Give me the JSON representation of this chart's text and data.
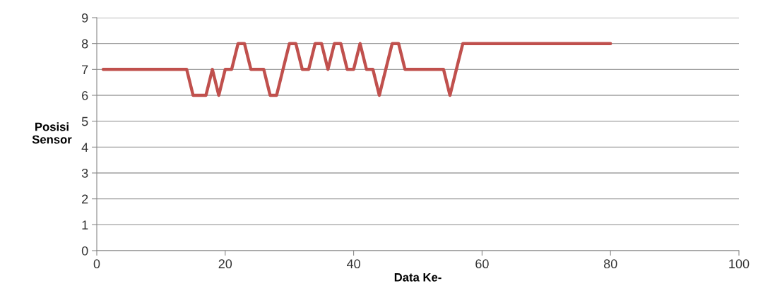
{
  "chart_data": {
    "type": "line",
    "xlabel": "Data Ke-",
    "ylabel": "Posisi\nSensor",
    "x": [
      1,
      2,
      3,
      4,
      5,
      6,
      7,
      8,
      9,
      10,
      11,
      12,
      13,
      14,
      15,
      16,
      17,
      18,
      19,
      20,
      21,
      22,
      23,
      24,
      25,
      26,
      27,
      28,
      29,
      30,
      31,
      32,
      33,
      34,
      35,
      36,
      37,
      38,
      39,
      40,
      41,
      42,
      43,
      44,
      45,
      46,
      47,
      48,
      49,
      50,
      51,
      52,
      53,
      54,
      55,
      56,
      57,
      58,
      59,
      60,
      61,
      62,
      63,
      64,
      65,
      66,
      67,
      68,
      69,
      70,
      71,
      72,
      73,
      74,
      75,
      76,
      77,
      78,
      79,
      80
    ],
    "series": [
      {
        "color": "#c0504d",
        "values": [
          7,
          7,
          7,
          7,
          7,
          7,
          7,
          7,
          7,
          7,
          7,
          7,
          7,
          7,
          6,
          6,
          6,
          7,
          6,
          7,
          7,
          8,
          8,
          7,
          7,
          7,
          6,
          6,
          7,
          8,
          8,
          7,
          7,
          8,
          8,
          7,
          8,
          8,
          7,
          7,
          8,
          7,
          7,
          6,
          7,
          8,
          8,
          7,
          7,
          7,
          7,
          7,
          7,
          7,
          6,
          7,
          8,
          8,
          8,
          8,
          8,
          8,
          8,
          8,
          8,
          8,
          8,
          8,
          8,
          8,
          8,
          8,
          8,
          8,
          8,
          8,
          8,
          8,
          8,
          8
        ]
      }
    ],
    "xlim": [
      0,
      100
    ],
    "xticks": [
      0,
      20,
      40,
      60,
      80,
      100
    ],
    "ylim": [
      0,
      9
    ],
    "yticks": [
      0,
      1,
      2,
      3,
      4,
      5,
      6,
      7,
      8,
      9
    ],
    "grid": "y",
    "marker": "none",
    "line_style": "solid"
  }
}
